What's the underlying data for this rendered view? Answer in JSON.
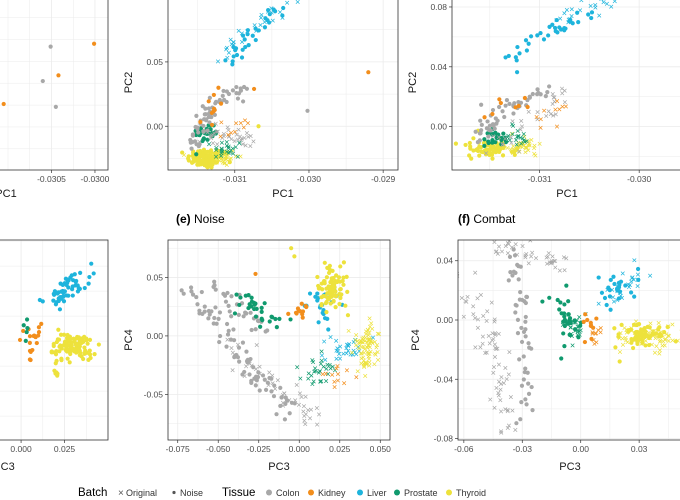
{
  "colors": {
    "Colon": "#A8A8A8",
    "Kidney": "#F28E1C",
    "Liver": "#1EB4DC",
    "Prostate": "#109A6E",
    "Thyroid": "#EDE23C"
  },
  "legend": {
    "batch_title": "Batch",
    "batch_items": [
      {
        "label": "Original",
        "marker": "cross"
      },
      {
        "label": "Noise",
        "marker": "dot"
      }
    ],
    "tissue_title": "Tissue",
    "tissue_items": [
      "Colon",
      "Kidney",
      "Liver",
      "Prostate",
      "Thyroid"
    ]
  },
  "chart_data": [
    {
      "id": "p1",
      "type": "scatter",
      "title": "",
      "xlabel": "PC1",
      "ylabel": "",
      "xlim": [
        -0.03115,
        -0.02985
      ],
      "ylim": [
        -0.015,
        0.046
      ],
      "xticks": [
        -0.0305,
        -0.03
      ],
      "xtick_labels": [
        "-0.0305",
        "-0.0300"
      ],
      "yticks": [],
      "ytick_labels": [],
      "points": [
        {
          "tissue": "Colon",
          "batch": "Noise",
          "x": -0.03051,
          "y": 0.028
        },
        {
          "tissue": "Colon",
          "batch": "Noise",
          "x": -0.0306,
          "y": 0.016
        },
        {
          "tissue": "Kidney",
          "batch": "Noise",
          "x": -0.03042,
          "y": 0.018
        },
        {
          "tissue": "Kidney",
          "batch": "Noise",
          "x": -0.03001,
          "y": 0.029
        },
        {
          "tissue": "Kidney",
          "batch": "Noise",
          "x": -0.03105,
          "y": 0.008
        },
        {
          "tissue": "Colon",
          "batch": "Noise",
          "x": -0.03045,
          "y": 0.007
        },
        {
          "tissue": "Liver",
          "batch": "Noise",
          "x": -0.03105,
          "y": 0.045
        }
      ]
    },
    {
      "id": "p2",
      "type": "scatter",
      "title": "",
      "xlabel": "PC1",
      "ylabel": "PC2",
      "xlim": [
        -0.0319,
        -0.0288
      ],
      "ylim": [
        -0.034,
        0.102
      ],
      "xticks": [
        -0.031,
        -0.03,
        -0.029
      ],
      "xtick_labels": [
        "-0.031",
        "-0.030",
        "-0.029"
      ],
      "yticks": [
        0.0,
        0.05
      ],
      "ytick_labels": [
        "0.00",
        "0.05"
      ]
    },
    {
      "id": "p3",
      "type": "scatter",
      "title": "",
      "xlabel": "PC1",
      "ylabel": "PC2",
      "xlim": [
        -0.03188,
        -0.02957
      ],
      "ylim": [
        -0.029,
        0.088
      ],
      "xticks": [
        -0.031,
        -0.03
      ],
      "xtick_labels": [
        "-0.031",
        "-0.030"
      ],
      "yticks": [
        0.0,
        0.04,
        0.08
      ],
      "ytick_labels": [
        "0.00",
        "0.04",
        "0.08"
      ]
    },
    {
      "id": "p4",
      "type": "scatter",
      "title": "",
      "xlabel": "PC3",
      "ylabel": "",
      "xlim": [
        -0.015,
        0.05
      ],
      "ylim": [
        -0.088,
        0.09
      ],
      "xticks": [
        0.0,
        0.025
      ],
      "xtick_labels": [
        "0.000",
        "0.025"
      ],
      "yticks": [],
      "ytick_labels": []
    },
    {
      "id": "p5",
      "type": "scatter",
      "title": "Noise",
      "panel": "(e)",
      "xlabel": "PC3",
      "ylabel": "PC4",
      "xlim": [
        -0.081,
        0.056
      ],
      "ylim": [
        -0.089,
        0.082
      ],
      "xticks": [
        -0.075,
        -0.05,
        -0.025,
        0.0,
        0.025,
        0.05
      ],
      "xtick_labels": [
        "-0.075",
        "-0.050",
        "-0.025",
        "0.000",
        "0.025",
        "0.050"
      ],
      "yticks": [
        -0.05,
        0.0,
        0.05
      ],
      "ytick_labels": [
        "-0.05",
        "0.00",
        "0.05"
      ]
    },
    {
      "id": "p6",
      "type": "scatter",
      "title": "Combat",
      "panel": "(f)",
      "xlabel": "PC3",
      "ylabel": "PC4",
      "xlim": [
        -0.063,
        0.052
      ],
      "ylim": [
        -0.081,
        0.054
      ],
      "xticks": [
        -0.06,
        -0.03,
        0.0,
        0.03
      ],
      "xtick_labels": [
        "-0.06",
        "-0.03",
        "0.00",
        "0.03"
      ],
      "yticks": [
        -0.08,
        -0.04,
        0.0,
        0.04
      ],
      "ytick_labels": [
        "-0.08",
        "-0.04",
        "0.00",
        "0.04"
      ]
    }
  ]
}
